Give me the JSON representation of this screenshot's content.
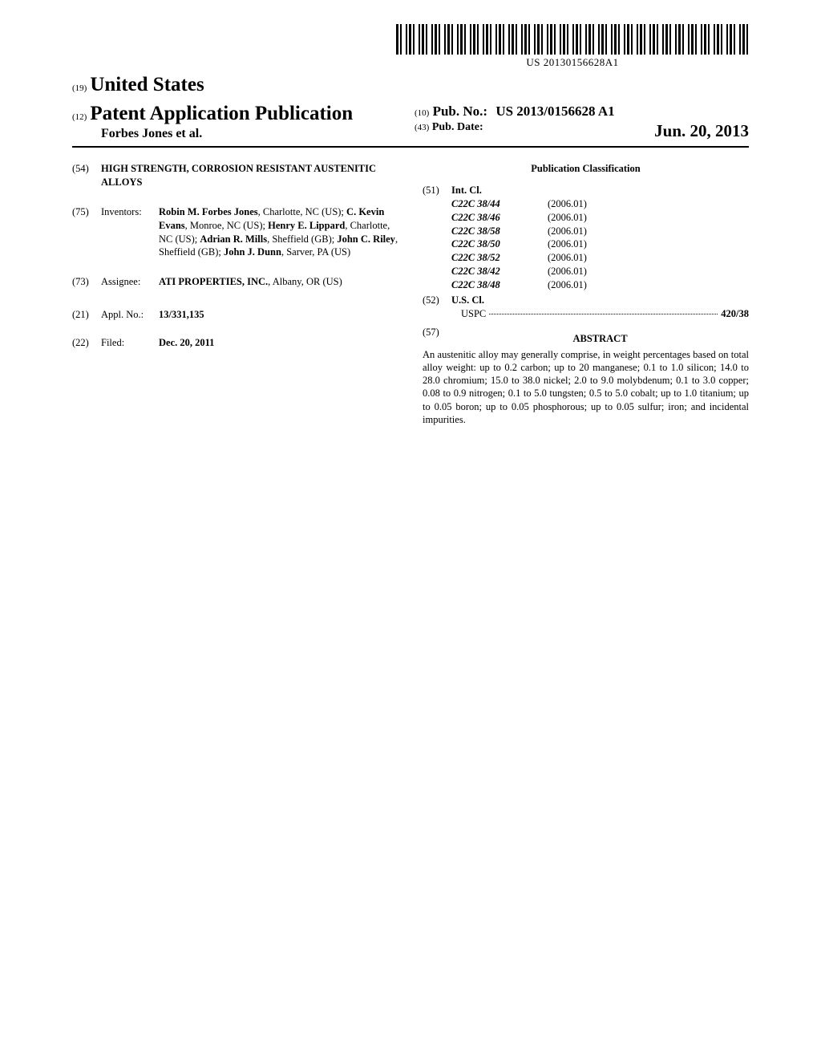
{
  "barcode": {
    "text": "US 20130156628A1"
  },
  "header": {
    "country_num": "(19)",
    "country": "United States",
    "pub_type_num": "(12)",
    "pub_type": "Patent Application Publication",
    "authors": "Forbes Jones et al.",
    "pubno_num": "(10)",
    "pubno_label": "Pub. No.:",
    "pubno_value": "US 2013/0156628 A1",
    "pubdate_num": "(43)",
    "pubdate_label": "Pub. Date:",
    "pubdate_value": "Jun. 20, 2013"
  },
  "left": {
    "title_num": "(54)",
    "title": "HIGH STRENGTH, CORROSION RESISTANT AUSTENITIC ALLOYS",
    "inventors_num": "(75)",
    "inventors_label": "Inventors:",
    "inventors": [
      {
        "name": "Robin M. Forbes Jones",
        "loc": ", Charlotte, NC (US); "
      },
      {
        "name": "C. Kevin Evans",
        "loc": ", Monroe, NC (US); "
      },
      {
        "name": "Henry E. Lippard",
        "loc": ", Charlotte, NC (US); "
      },
      {
        "name": "Adrian R. Mills",
        "loc": ", Sheffield (GB); "
      },
      {
        "name": "John C. Riley",
        "loc": ", Sheffield (GB); "
      },
      {
        "name": "John J. Dunn",
        "loc": ", Sarver, PA (US)"
      }
    ],
    "assignee_num": "(73)",
    "assignee_label": "Assignee:",
    "assignee_name": "ATI PROPERTIES, INC.",
    "assignee_loc": ", Albany, OR (US)",
    "appl_num": "(21)",
    "appl_label": "Appl. No.:",
    "appl_value": "13/331,135",
    "filed_num": "(22)",
    "filed_label": "Filed:",
    "filed_value": "Dec. 20, 2011"
  },
  "right": {
    "class_heading": "Publication Classification",
    "intcl_num": "(51)",
    "intcl_label": "Int. Cl.",
    "intcl": [
      {
        "code": "C22C 38/44",
        "ver": "(2006.01)"
      },
      {
        "code": "C22C 38/46",
        "ver": "(2006.01)"
      },
      {
        "code": "C22C 38/58",
        "ver": "(2006.01)"
      },
      {
        "code": "C22C 38/50",
        "ver": "(2006.01)"
      },
      {
        "code": "C22C 38/52",
        "ver": "(2006.01)"
      },
      {
        "code": "C22C 38/42",
        "ver": "(2006.01)"
      },
      {
        "code": "C22C 38/48",
        "ver": "(2006.01)"
      }
    ],
    "uscl_num": "(52)",
    "uscl_label": "U.S. Cl.",
    "uspc_label": "USPC",
    "uspc_value": "420/38",
    "abstract_num": "(57)",
    "abstract_heading": "ABSTRACT",
    "abstract_text": "An austenitic alloy may generally comprise, in weight percentages based on total alloy weight: up to 0.2 carbon; up to 20 manganese; 0.1 to 1.0 silicon; 14.0 to 28.0 chromium; 15.0 to 38.0 nickel; 2.0 to 9.0 molybdenum; 0.1 to 3.0 copper; 0.08 to 0.9 nitrogen; 0.1 to 5.0 tungsten; 0.5 to 5.0 cobalt; up to 1.0 titanium; up to 0.05 boron; up to 0.05 phosphorous; up to 0.05 sulfur; iron; and incidental impurities."
  }
}
